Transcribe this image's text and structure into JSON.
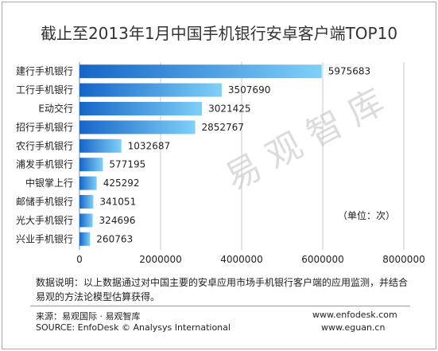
{
  "chart_data": {
    "type": "bar",
    "orientation": "horizontal",
    "title": "截止至2013年1月中国手机银行安卓客户端TOP10",
    "categories": [
      "建行手机银行",
      "工行手机银行",
      "E动交行",
      "招行手机银行",
      "农行手机银行",
      "浦发手机银行",
      "中银掌上行",
      "邮储手机银行",
      "光大手机银行",
      "兴业手机银行"
    ],
    "values": [
      5975683,
      3507690,
      3021425,
      2852767,
      1032687,
      577195,
      425292,
      341051,
      324696,
      260763
    ],
    "xlim": [
      0,
      8000000
    ],
    "xticks": [
      "0",
      "2000000",
      "4000000",
      "6000000",
      "8000000"
    ],
    "unit_label": "（单位：次）",
    "grid": true,
    "colors": {
      "bar_dark": "#1565c8",
      "bar_light": "#7fd0f8",
      "grid": "#c8c8c8"
    }
  },
  "watermark": "易观智库",
  "note": "数据说明：以上数据通过对中国主要的安卓应用市场手机银行客户端的应用监测，并结合易观的方法论模型估算获得。",
  "source": {
    "cn": "来源：易观国际 · 易观智库",
    "en": "SOURCE: EnfoDesk © Analysys International",
    "url1": "www.enfodesk.com",
    "url2": "www.eguan.cn"
  }
}
